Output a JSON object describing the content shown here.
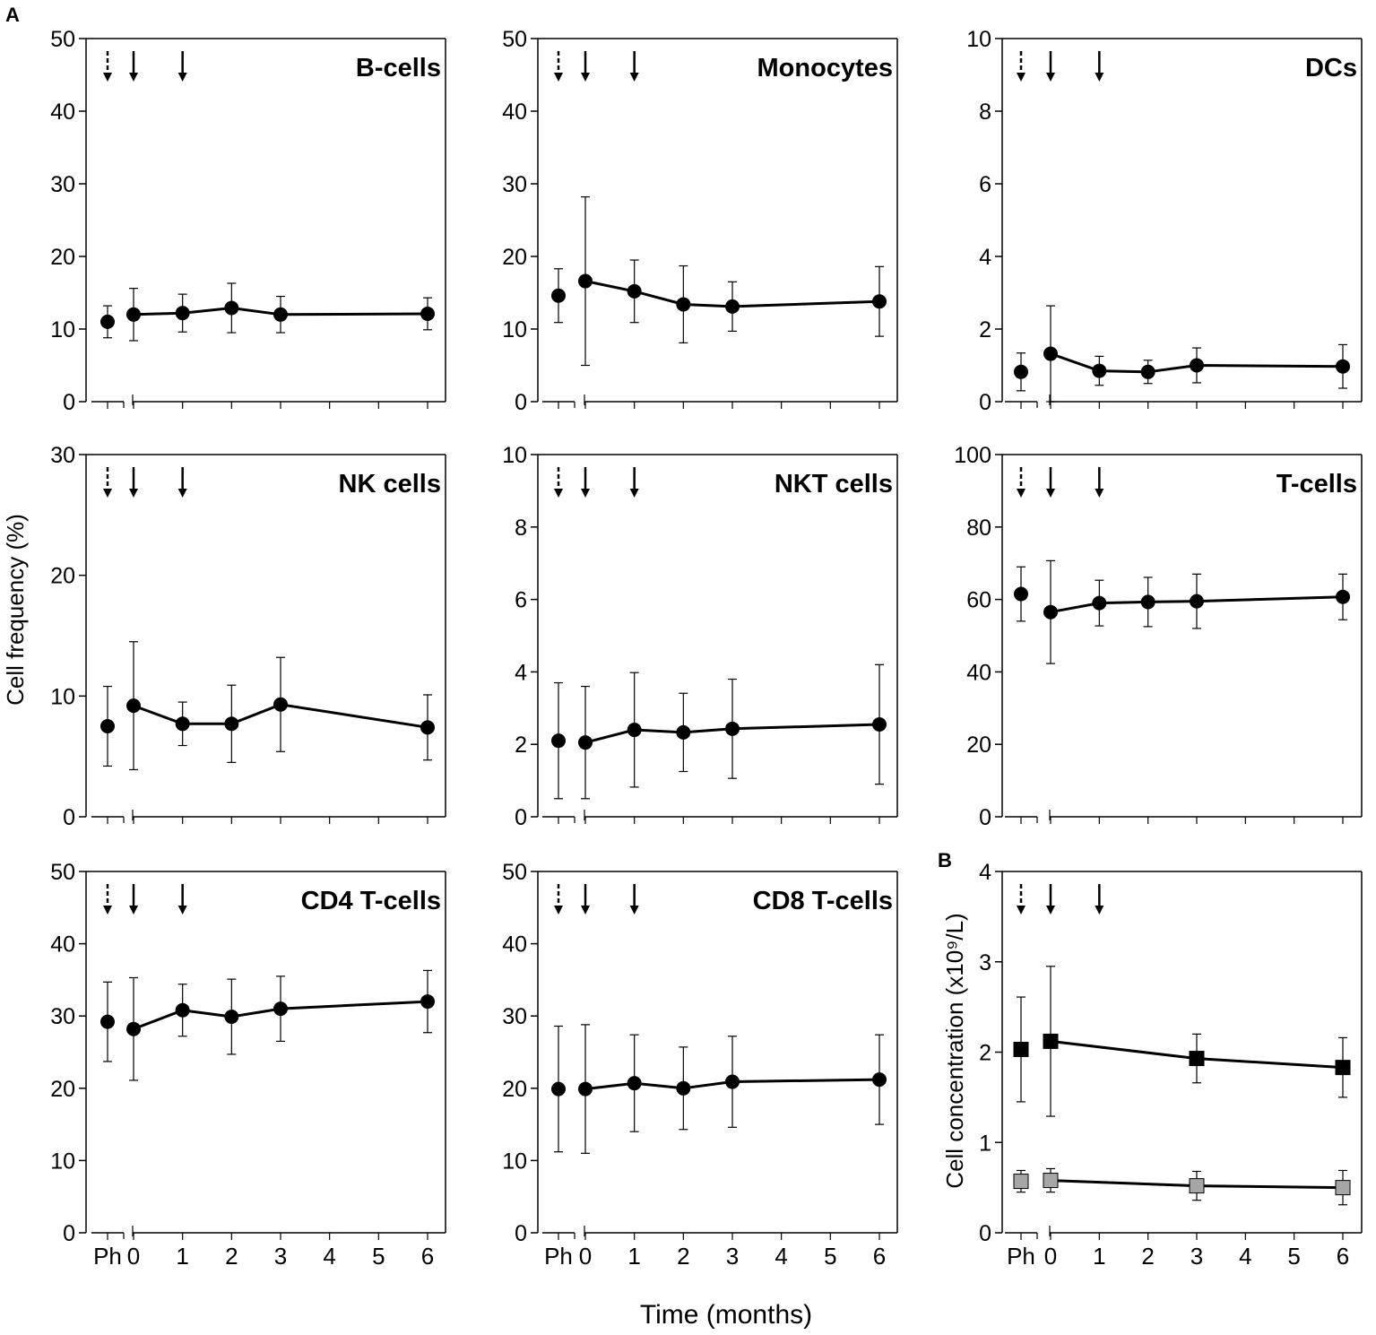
{
  "figure": {
    "panel_a_label": "A",
    "panel_b_label": "B",
    "y_label_a": "Cell frequency (%)",
    "y_label_b": "Cell concentration (x10⁹/L)",
    "x_label": "Time (months)",
    "x_ticks": [
      "Ph",
      "0",
      "1",
      "2",
      "3",
      "4",
      "5",
      "6"
    ]
  },
  "chart_data": [
    {
      "type": "line",
      "title": "B-cells",
      "ylim": [
        0,
        50
      ],
      "yticks": [
        0,
        10,
        20,
        30,
        40,
        50
      ],
      "series": [
        {
          "name": "B-cells",
          "marker": "circle",
          "color": "#000000",
          "pre": {
            "x": "Ph",
            "y": 11.0,
            "err": 2.2
          },
          "points": [
            {
              "x": 0,
              "y": 12.0,
              "err": 3.6
            },
            {
              "x": 1,
              "y": 12.2,
              "err": 2.6
            },
            {
              "x": 2,
              "y": 12.9,
              "err": 3.4
            },
            {
              "x": 3,
              "y": 12.0,
              "err": 2.5
            },
            {
              "x": 6,
              "y": 12.1,
              "err": 2.2
            }
          ]
        }
      ],
      "arrows": {
        "dashed": [
          "Ph"
        ],
        "solid": [
          0,
          1
        ]
      },
      "show_x_labels": false
    },
    {
      "type": "line",
      "title": "Monocytes",
      "ylim": [
        0,
        50
      ],
      "yticks": [
        0,
        10,
        20,
        30,
        40,
        50
      ],
      "series": [
        {
          "name": "Monocytes",
          "marker": "circle",
          "color": "#000000",
          "pre": {
            "x": "Ph",
            "y": 14.6,
            "err": 3.7
          },
          "points": [
            {
              "x": 0,
              "y": 16.6,
              "err": 11.6
            },
            {
              "x": 1,
              "y": 15.2,
              "err": 4.3
            },
            {
              "x": 2,
              "y": 13.4,
              "err": 5.3
            },
            {
              "x": 3,
              "y": 13.1,
              "err": 3.4
            },
            {
              "x": 6,
              "y": 13.8,
              "err": 4.8
            }
          ]
        }
      ],
      "arrows": {
        "dashed": [
          "Ph"
        ],
        "solid": [
          0,
          1
        ]
      },
      "show_x_labels": false
    },
    {
      "type": "line",
      "title": "DCs",
      "ylim": [
        0,
        10
      ],
      "yticks": [
        0,
        2,
        4,
        6,
        8,
        10
      ],
      "series": [
        {
          "name": "DCs",
          "marker": "circle",
          "color": "#000000",
          "pre": {
            "x": "Ph",
            "y": 0.82,
            "err": 0.52
          },
          "points": [
            {
              "x": 0,
              "y": 1.32,
              "err": 1.32
            },
            {
              "x": 1,
              "y": 0.85,
              "err": 0.4
            },
            {
              "x": 2,
              "y": 0.82,
              "err": 0.32
            },
            {
              "x": 3,
              "y": 1.0,
              "err": 0.48
            },
            {
              "x": 6,
              "y": 0.97,
              "err": 0.6
            }
          ]
        }
      ],
      "arrows": {
        "dashed": [
          "Ph"
        ],
        "solid": [
          0,
          1
        ]
      },
      "show_x_labels": false
    },
    {
      "type": "line",
      "title": "NK cells",
      "ylim": [
        0,
        30
      ],
      "yticks": [
        0,
        10,
        20,
        30
      ],
      "series": [
        {
          "name": "NK cells",
          "marker": "circle",
          "color": "#000000",
          "pre": {
            "x": "Ph",
            "y": 7.5,
            "err": 3.3
          },
          "points": [
            {
              "x": 0,
              "y": 9.2,
              "err": 5.3
            },
            {
              "x": 1,
              "y": 7.7,
              "err": 1.8
            },
            {
              "x": 2,
              "y": 7.7,
              "err": 3.2
            },
            {
              "x": 3,
              "y": 9.3,
              "err": 3.9
            },
            {
              "x": 6,
              "y": 7.4,
              "err": 2.7
            }
          ]
        }
      ],
      "arrows": {
        "dashed": [
          "Ph"
        ],
        "solid": [
          0,
          1
        ]
      },
      "show_x_labels": false
    },
    {
      "type": "line",
      "title": "NKT cells",
      "ylim": [
        0,
        10
      ],
      "yticks": [
        0,
        2,
        4,
        6,
        8,
        10
      ],
      "series": [
        {
          "name": "NKT cells",
          "marker": "circle",
          "color": "#000000",
          "pre": {
            "x": "Ph",
            "y": 2.1,
            "err": 1.6
          },
          "points": [
            {
              "x": 0,
              "y": 2.05,
              "err": 1.55
            },
            {
              "x": 1,
              "y": 2.4,
              "err": 1.58
            },
            {
              "x": 2,
              "y": 2.33,
              "err": 1.08
            },
            {
              "x": 3,
              "y": 2.43,
              "err": 1.37
            },
            {
              "x": 6,
              "y": 2.55,
              "err": 1.65
            }
          ]
        }
      ],
      "arrows": {
        "dashed": [
          "Ph"
        ],
        "solid": [
          0,
          1
        ]
      },
      "show_x_labels": false
    },
    {
      "type": "line",
      "title": "T-cells",
      "ylim": [
        0,
        100
      ],
      "yticks": [
        0,
        20,
        40,
        60,
        80,
        100
      ],
      "series": [
        {
          "name": "T-cells",
          "marker": "circle",
          "color": "#000000",
          "pre": {
            "x": "Ph",
            "y": 61.5,
            "err": 7.5
          },
          "points": [
            {
              "x": 0,
              "y": 56.5,
              "err": 14.2
            },
            {
              "x": 1,
              "y": 59.0,
              "err": 6.3
            },
            {
              "x": 2,
              "y": 59.3,
              "err": 6.8
            },
            {
              "x": 3,
              "y": 59.5,
              "err": 7.5
            },
            {
              "x": 6,
              "y": 60.7,
              "err": 6.3
            }
          ]
        }
      ],
      "arrows": {
        "dashed": [
          "Ph"
        ],
        "solid": [
          0,
          1
        ]
      },
      "show_x_labels": false
    },
    {
      "type": "line",
      "title": "CD4 T-cells",
      "ylim": [
        0,
        50
      ],
      "yticks": [
        0,
        10,
        20,
        30,
        40,
        50
      ],
      "series": [
        {
          "name": "CD4 T-cells",
          "marker": "circle",
          "color": "#000000",
          "pre": {
            "x": "Ph",
            "y": 29.2,
            "err": 5.5
          },
          "points": [
            {
              "x": 0,
              "y": 28.2,
              "err": 7.1
            },
            {
              "x": 1,
              "y": 30.8,
              "err": 3.6
            },
            {
              "x": 2,
              "y": 29.9,
              "err": 5.2
            },
            {
              "x": 3,
              "y": 31.0,
              "err": 4.5
            },
            {
              "x": 6,
              "y": 32.0,
              "err": 4.3
            }
          ]
        }
      ],
      "arrows": {
        "dashed": [
          "Ph"
        ],
        "solid": [
          0,
          1
        ]
      },
      "show_x_labels": true
    },
    {
      "type": "line",
      "title": "CD8 T-cells",
      "ylim": [
        0,
        50
      ],
      "yticks": [
        0,
        10,
        20,
        30,
        40,
        50
      ],
      "series": [
        {
          "name": "CD8 T-cells",
          "marker": "circle",
          "color": "#000000",
          "pre": {
            "x": "Ph",
            "y": 19.9,
            "err": 8.7
          },
          "points": [
            {
              "x": 0,
              "y": 19.9,
              "err": 8.9
            },
            {
              "x": 1,
              "y": 20.7,
              "err": 6.7
            },
            {
              "x": 2,
              "y": 20.0,
              "err": 5.7
            },
            {
              "x": 3,
              "y": 20.9,
              "err": 6.3
            },
            {
              "x": 6,
              "y": 21.2,
              "err": 6.2
            }
          ]
        }
      ],
      "arrows": {
        "dashed": [
          "Ph"
        ],
        "solid": [
          0,
          1
        ]
      },
      "show_x_labels": true
    },
    {
      "type": "line",
      "title": "",
      "ylim": [
        0,
        4
      ],
      "yticks": [
        0,
        1,
        2,
        3,
        4
      ],
      "series": [
        {
          "name": "series-black",
          "marker": "square",
          "color": "#000000",
          "pre": {
            "x": "Ph",
            "y": 2.03,
            "err": 0.58
          },
          "points": [
            {
              "x": 0,
              "y": 2.12,
              "err": 0.83
            },
            {
              "x": 3,
              "y": 1.93,
              "err": 0.27
            },
            {
              "x": 6,
              "y": 1.83,
              "err": 0.33
            }
          ]
        },
        {
          "name": "series-grey",
          "marker": "square",
          "color": "#a6a6a6",
          "pre": {
            "x": "Ph",
            "y": 0.57,
            "err": 0.12
          },
          "points": [
            {
              "x": 0,
              "y": 0.58,
              "err": 0.13
            },
            {
              "x": 3,
              "y": 0.52,
              "err": 0.16
            },
            {
              "x": 6,
              "y": 0.5,
              "err": 0.19
            }
          ]
        }
      ],
      "arrows": {
        "dashed": [
          "Ph"
        ],
        "solid": [
          0,
          1
        ]
      },
      "show_x_labels": true
    }
  ]
}
